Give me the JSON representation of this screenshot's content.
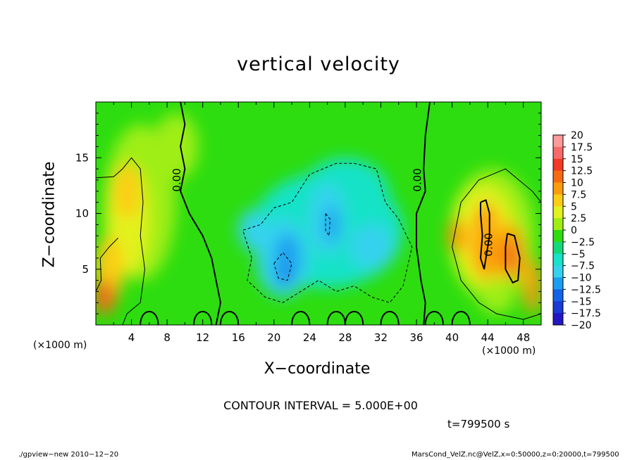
{
  "chart_data": {
    "type": "heatmap",
    "title": "vertical velocity",
    "xlabel": "X−coordinate",
    "ylabel": "Z−coordinate",
    "x_unit": "(×1000 m)",
    "xlim": [
      0,
      50
    ],
    "ylim": [
      0,
      20
    ],
    "x_ticks": [
      4,
      8,
      12,
      16,
      20,
      24,
      28,
      32,
      36,
      40,
      44,
      48
    ],
    "y_ticks": [
      5,
      10,
      15
    ],
    "colorbar_levels": [
      "20",
      "17.5",
      "15",
      "12.5",
      "10",
      "7.5",
      "5",
      "2.5",
      "0",
      "−2.5",
      "−5",
      "−7.5",
      "−10",
      "−12.5",
      "−15",
      "−17.5",
      "−20"
    ],
    "colorbar_colors": [
      "#ff9a9a",
      "#f86a6a",
      "#f23a26",
      "#f76a12",
      "#fa9d0c",
      "#fccd14",
      "#e2f21e",
      "#9fee12",
      "#2ddd10",
      "#14d97a",
      "#18e2c8",
      "#34d2ee",
      "#1c9ef0",
      "#1363e6",
      "#1a3ad4",
      "#2317c4",
      "#5b16b6"
    ],
    "contour_label": "0.00",
    "contour_interval": "CONTOUR INTERVAL = 5.000E+00",
    "time": "t=799500 s",
    "features": [
      {
        "kind": "updraft",
        "x": 45,
        "z": 8,
        "peak": 15
      },
      {
        "kind": "updraft",
        "x": 2.5,
        "z": 8,
        "peak": 7.5
      },
      {
        "kind": "downdraft",
        "x": 21,
        "z": 6,
        "peak": -12.5
      },
      {
        "kind": "downdraft",
        "x": 26,
        "z": 10,
        "peak": -10
      }
    ]
  },
  "footer": {
    "left": "./gpview−new  2010−12−20",
    "right": "MarsCond_VelZ.nc@VelZ,x=0:50000,z=0:20000,t=799500"
  }
}
